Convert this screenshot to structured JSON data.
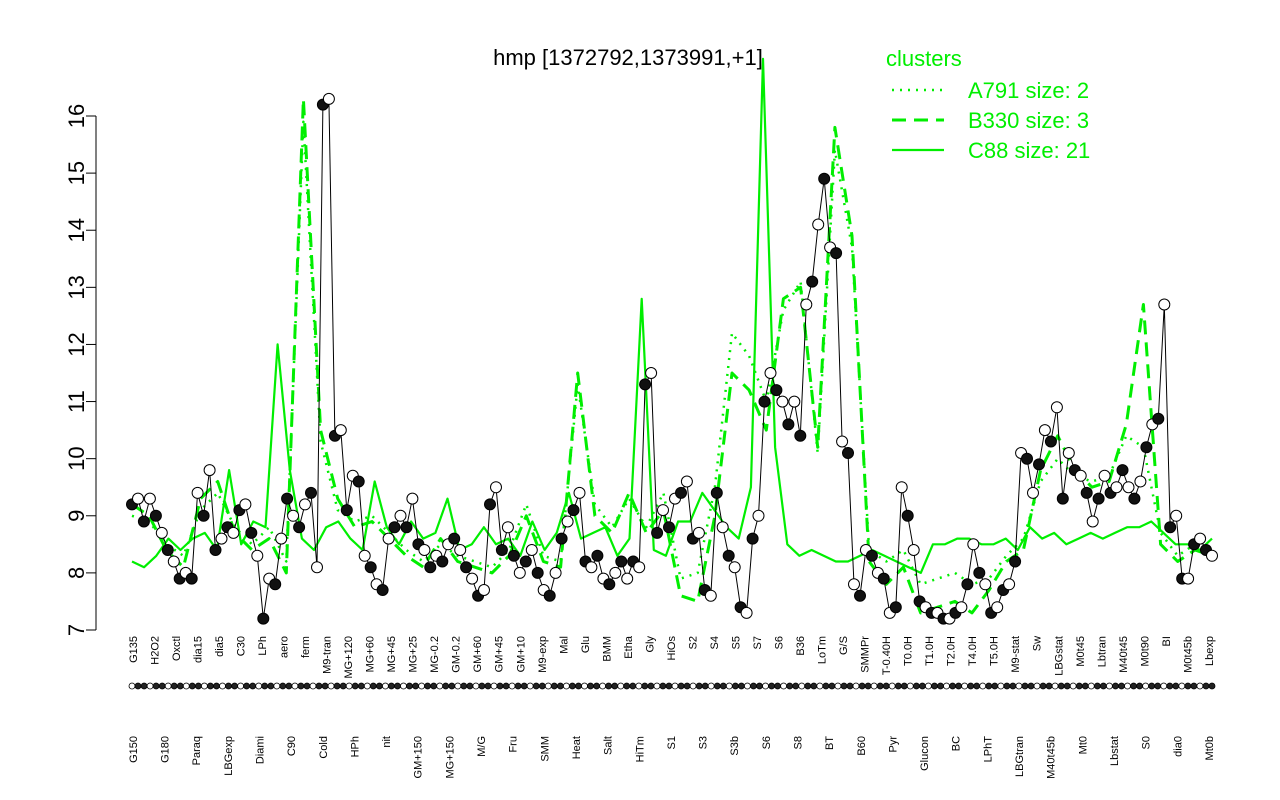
{
  "chart_data": {
    "type": "line",
    "title": "hmp [1372792,1373991,+1]",
    "xlabel": "",
    "ylabel": "",
    "ylim": [
      7,
      16
    ],
    "yticks": [
      7,
      8,
      9,
      10,
      11,
      12,
      13,
      14,
      15,
      16
    ],
    "legend": {
      "title": "clusters",
      "placement": "top-right",
      "entries": [
        {
          "label": "A791 size: 2",
          "style": "dotted",
          "color": "#00ee00"
        },
        {
          "label": "B330 size: 3",
          "style": "dashed",
          "color": "#00ee00"
        },
        {
          "label": "C88 size: 21",
          "style": "solid",
          "color": "#00ee00"
        }
      ]
    },
    "upper_labels": [
      "G135",
      "H2O2",
      "Oxctl",
      "dia15",
      "dia5",
      "C30",
      "LPh",
      "aero",
      "ferm",
      "M9-tran",
      "MG+120",
      "MG+60",
      "MG+45",
      "MG+25",
      "MG-0.2",
      "GM-0.2",
      "GM+60",
      "GM+45",
      "GM+10",
      "M9-exp",
      "Mal",
      "Glu",
      "BMM",
      "Etha",
      "Gly",
      "HiOs",
      "S2",
      "S4",
      "S5",
      "S7",
      "S6",
      "B36",
      "LoTm",
      "G/S",
      "SMMPr",
      "T-0.40H",
      "T0.0H",
      "T1.0H",
      "T2.0H",
      "T4.0H",
      "T5.0H",
      "M9-stat",
      "Sw",
      "LBGstat",
      "M0t45",
      "Lbtran",
      "M40t45",
      "M0t90",
      "BI",
      "M0t45b",
      "Lbexp"
    ],
    "lower_labels": [
      "G150",
      "G180",
      "Paraq",
      "LBGexp",
      "Diami",
      "C90",
      "Cold",
      "HPh",
      "nit",
      "GM+150",
      "MG+150",
      "M/G",
      "Fru",
      "SMM",
      "Heat",
      "Salt",
      "HiTm",
      "S1",
      "S3",
      "S3b",
      "S6",
      "S8",
      "BT",
      "B60",
      "Pyr",
      "Glucon",
      "BC",
      "LPhT",
      "LBGtran",
      "M40t45b",
      "Mt0",
      "Lbstat",
      "S0",
      "dia0",
      "Mt0b"
    ],
    "series": [
      {
        "style": "solid",
        "values": [
          8.2,
          8.1,
          8.3,
          8.6,
          8.4,
          8.6,
          8.7,
          8.4,
          9.8,
          8.5,
          8.9,
          8.8,
          12.0,
          9.8,
          8.6,
          8.4,
          8.8,
          8.9,
          8.6,
          8.4,
          9.6,
          8.8,
          8.5,
          8.9,
          8.6,
          8.7,
          9.3,
          8.4,
          8.5,
          8.8,
          8.5,
          8.6,
          8.3,
          8.9,
          8.4,
          8.7,
          9.4,
          8.6,
          8.7,
          8.8,
          8.3,
          8.6,
          12.8,
          8.4,
          8.3,
          8.9,
          8.9,
          9.4,
          9.1,
          8.8,
          8.6,
          9.5,
          17.0,
          10.2,
          8.5,
          8.3,
          8.4,
          8.3,
          8.2,
          8.2,
          8.3,
          8.4,
          8.3,
          8.2,
          8.1,
          8.0,
          8.5,
          8.5,
          8.6,
          8.6,
          8.5,
          8.5,
          8.6,
          8.4,
          8.8,
          8.6,
          8.7,
          8.5,
          8.6,
          8.7,
          8.6,
          8.7,
          8.8,
          8.8,
          8.9,
          8.7,
          8.5,
          8.5,
          8.4,
          8.6
        ]
      },
      {
        "style": "dashed",
        "values": [
          9.2,
          9.0,
          8.4,
          8.1,
          9.3,
          9.6,
          8.7,
          8.4,
          8.6,
          8.0,
          16.3,
          10.5,
          9.3,
          8.8,
          8.9,
          8.6,
          8.3,
          8.1,
          8.6,
          8.2,
          8.1,
          8.0,
          8.3,
          9.0,
          8.2,
          8.1,
          11.5,
          9.0,
          8.7,
          9.4,
          8.7,
          9.1,
          7.6,
          7.5,
          9.0,
          11.5,
          11.2,
          10.5,
          12.8,
          13.0,
          10.2,
          15.8,
          13.9,
          8.2,
          7.8,
          8.1,
          7.3,
          7.4,
          7.5,
          7.3,
          7.7,
          8.2,
          8.4,
          9.8,
          10.4,
          9.8,
          9.5,
          9.6,
          10.6,
          12.7,
          8.5,
          8.2,
          8.4,
          8.3
        ]
      },
      {
        "style": "dotted",
        "values": [
          9.0,
          8.9,
          8.5,
          8.3,
          9.1,
          9.4,
          8.8,
          8.5,
          8.8,
          8.2,
          15.9,
          10.3,
          9.1,
          8.9,
          9.0,
          8.7,
          8.4,
          8.2,
          8.5,
          8.3,
          8.2,
          8.1,
          8.4,
          9.2,
          8.3,
          8.2,
          11.3,
          9.2,
          8.8,
          9.3,
          8.8,
          9.4,
          7.9,
          8.0,
          9.5,
          12.2,
          11.8,
          11.0,
          12.6,
          13.1,
          10.1,
          15.4,
          13.7,
          8.4,
          8.2,
          8.4,
          7.8,
          7.9,
          8.0,
          7.8,
          7.9,
          8.3,
          8.6,
          9.6,
          10.0,
          9.7,
          9.6,
          9.7,
          10.4,
          10.2,
          8.7,
          8.3,
          8.5,
          8.4
        ]
      },
      {
        "style": "points",
        "values": [
          9.2,
          9.3,
          8.9,
          9.3,
          9.0,
          8.7,
          8.4,
          8.2,
          7.9,
          8.0,
          7.9,
          9.4,
          9.0,
          9.8,
          8.4,
          8.6,
          8.8,
          8.7,
          9.1,
          9.2,
          8.7,
          8.3,
          7.2,
          7.9,
          7.8,
          8.6,
          9.3,
          9.0,
          8.8,
          9.2,
          9.4,
          8.1,
          16.2,
          16.3,
          10.4,
          10.5,
          9.1,
          9.7,
          9.6,
          8.3,
          8.1,
          7.8,
          7.7,
          8.6,
          8.8,
          9.0,
          8.8,
          9.3,
          8.5,
          8.4,
          8.1,
          8.3,
          8.2,
          8.5,
          8.6,
          8.4,
          8.1,
          7.9,
          7.6,
          7.7,
          9.2,
          9.5,
          8.4,
          8.8,
          8.3,
          8.0,
          8.2,
          8.4,
          8.0,
          7.7,
          7.6,
          8.0,
          8.6,
          8.9,
          9.1,
          9.4,
          8.2,
          8.1,
          8.3,
          7.9,
          7.8,
          8.0,
          8.2,
          7.9,
          8.2,
          8.1,
          11.3,
          11.5,
          8.7,
          9.1,
          8.8,
          9.3,
          9.4,
          9.6,
          8.6,
          8.7,
          7.7,
          7.6,
          9.4,
          8.8,
          8.3,
          8.1,
          7.4,
          7.3,
          8.6,
          9.0,
          11.0,
          11.5,
          11.2,
          11.0,
          10.6,
          11.0,
          10.4,
          12.7,
          13.1,
          14.1,
          14.9,
          13.7,
          13.6,
          10.3,
          10.1,
          7.8,
          7.6,
          8.4,
          8.3,
          8.0,
          7.9,
          7.3,
          7.4,
          9.5,
          9.0,
          8.4,
          7.5,
          7.4,
          7.3,
          7.3,
          7.2,
          7.2,
          7.3,
          7.4,
          7.8,
          8.5,
          8.0,
          7.8,
          7.3,
          7.4,
          7.7,
          7.8,
          8.2,
          10.1,
          10.0,
          9.4,
          9.9,
          10.5,
          10.3,
          10.9,
          9.3,
          10.1,
          9.8,
          9.7,
          9.4,
          8.9,
          9.3,
          9.7,
          9.4,
          9.5,
          9.8,
          9.5,
          9.3,
          9.6,
          10.2,
          10.6,
          10.7,
          12.7,
          8.8,
          9.0,
          7.9,
          7.9,
          8.5,
          8.6,
          8.4,
          8.3
        ]
      }
    ]
  }
}
